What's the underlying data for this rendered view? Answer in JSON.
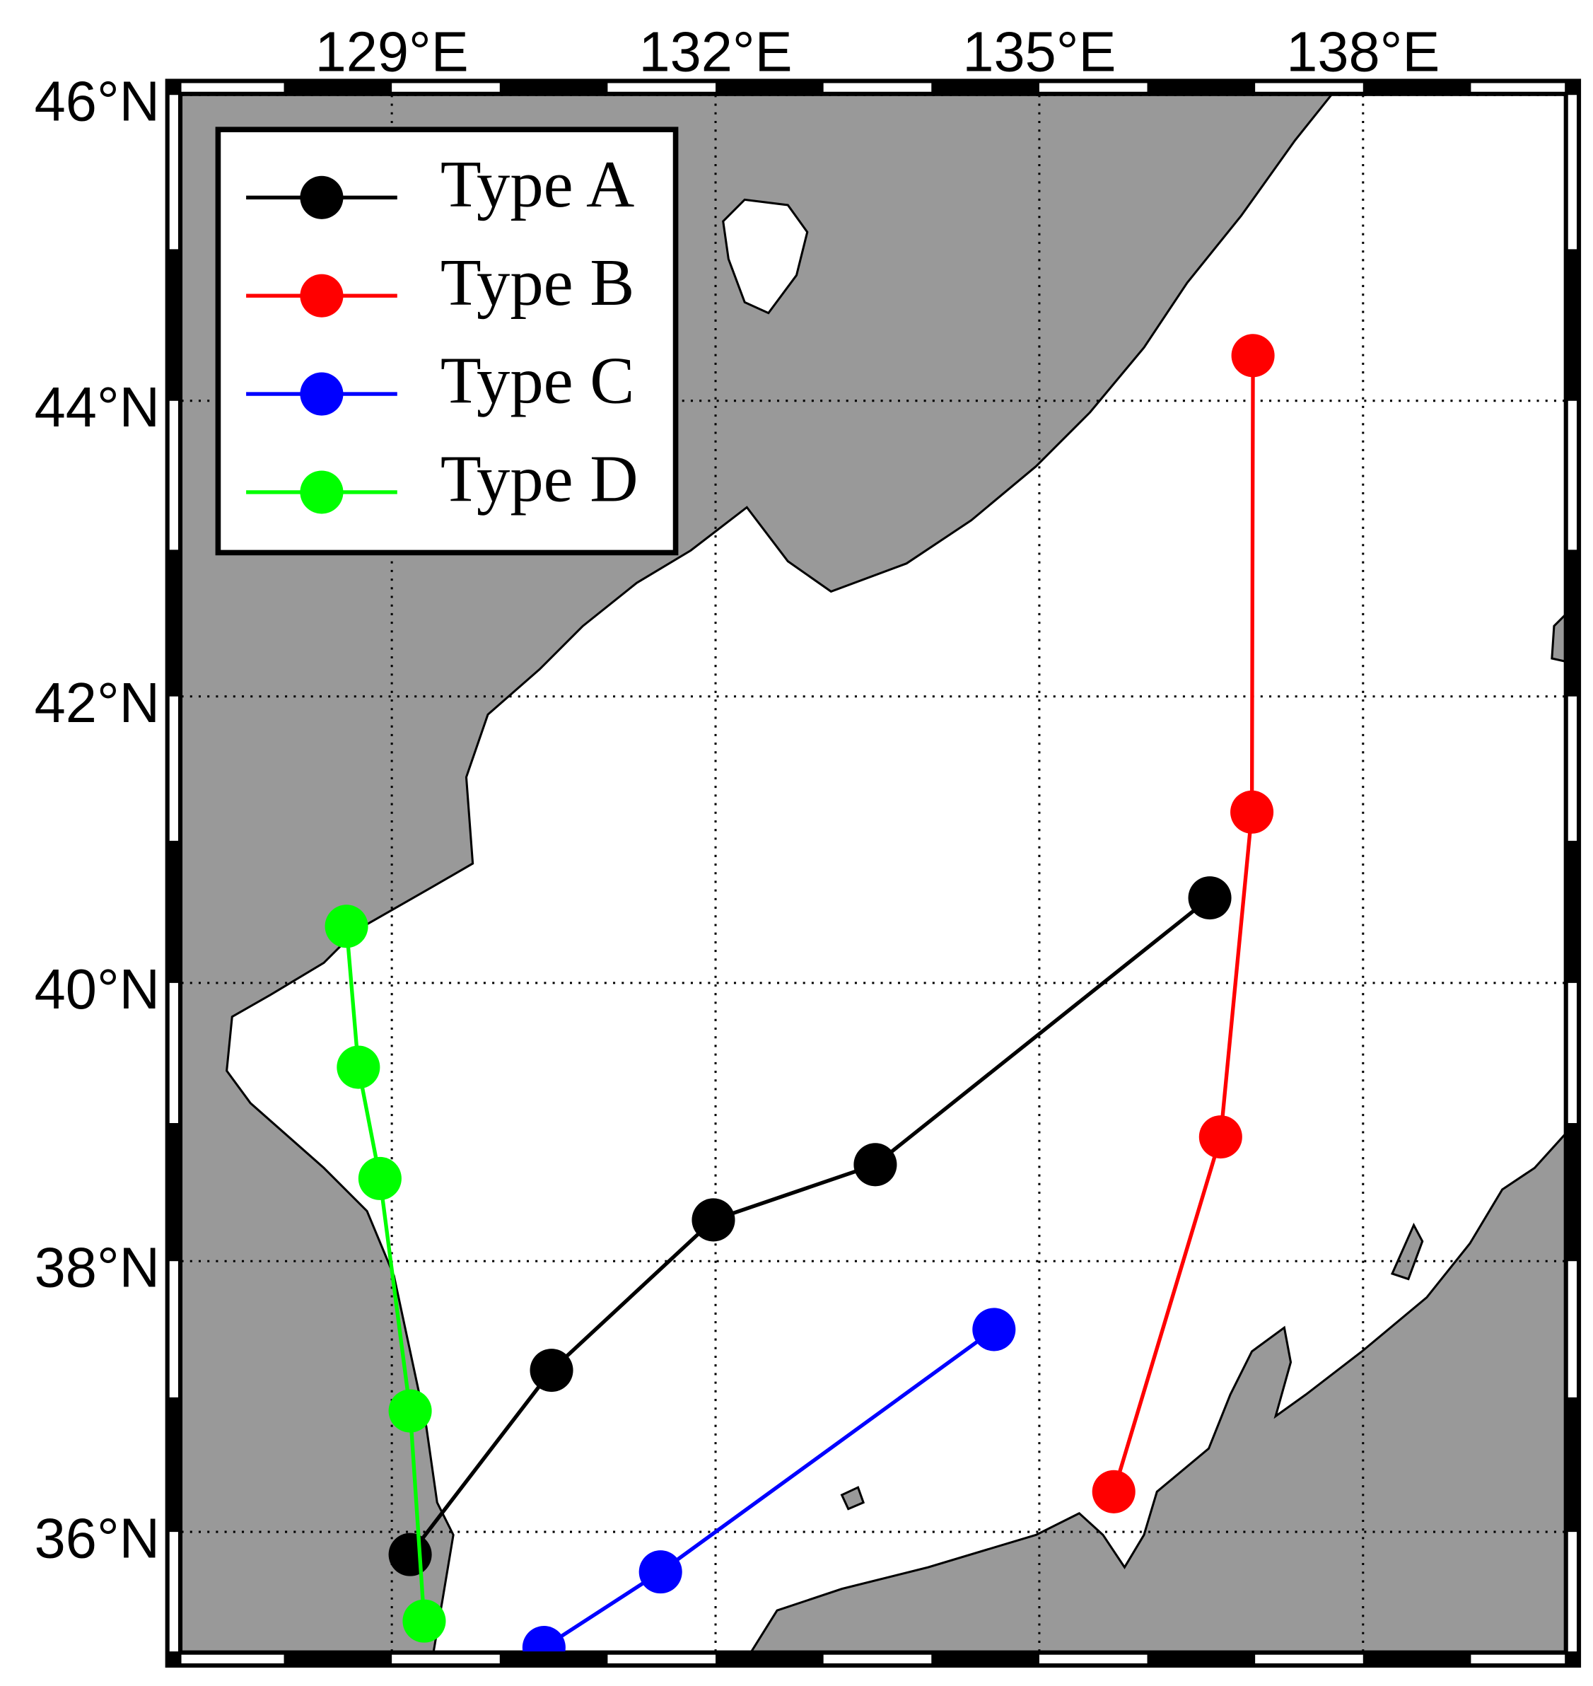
{
  "chart_data": {
    "type": "map",
    "projection": "mercator",
    "xlim": [
      127.05,
      139.87
    ],
    "ylim": [
      35.1,
      46
    ],
    "xticks": [
      {
        "value": 129,
        "label": "129°E"
      },
      {
        "value": 132,
        "label": "132°E"
      },
      {
        "value": 135,
        "label": "135°E"
      },
      {
        "value": 138,
        "label": "138°E"
      }
    ],
    "yticks": [
      {
        "value": 36,
        "label": "36°N"
      },
      {
        "value": 38,
        "label": "38°N"
      },
      {
        "value": 40,
        "label": "40°N"
      },
      {
        "value": 42,
        "label": "42°N"
      },
      {
        "value": 44,
        "label": "44°N"
      },
      {
        "value": 46,
        "label": "46°N"
      }
    ],
    "grid": true,
    "legend": "upper left",
    "series": [
      {
        "name": "Type A",
        "color": "#000000",
        "x": [
          129.17,
          130.48,
          131.98,
          133.48,
          136.58
        ],
        "values": [
          35.83,
          37.2,
          38.3,
          38.7,
          40.6
        ]
      },
      {
        "name": "Type B",
        "color": "#ff0000",
        "x": [
          136.98,
          136.97,
          136.68,
          135.69
        ],
        "values": [
          44.3,
          41.2,
          38.9,
          36.3
        ]
      },
      {
        "name": "Type C",
        "color": "#0000ff",
        "x": [
          134.58,
          131.49,
          130.41
        ],
        "values": [
          37.5,
          35.7,
          35.13
        ]
      },
      {
        "name": "Type D",
        "color": "#00ff00",
        "x": [
          128.58,
          128.69,
          128.89,
          129.17,
          129.3
        ],
        "values": [
          40.4,
          39.4,
          38.6,
          36.9,
          35.33
        ]
      }
    ]
  }
}
